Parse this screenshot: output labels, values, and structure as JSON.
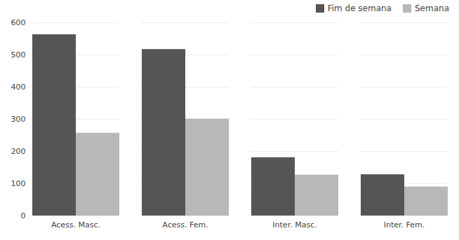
{
  "chart_data": {
    "type": "bar",
    "categories": [
      "Acess. Masc.",
      "Acess. Fem.",
      "Inter. Masc.",
      "Inter. Fem."
    ],
    "series": [
      {
        "name": "Fim de semana",
        "color": "#555555",
        "values": [
          563,
          517,
          181,
          128
        ]
      },
      {
        "name": "Semana",
        "color": "#b8b8b8",
        "values": [
          257,
          301,
          127,
          90
        ]
      }
    ],
    "ylim": [
      0,
      600
    ],
    "yticks": [
      0,
      100,
      200,
      300,
      400,
      500,
      600
    ],
    "grid": true,
    "legend": "upper right"
  }
}
